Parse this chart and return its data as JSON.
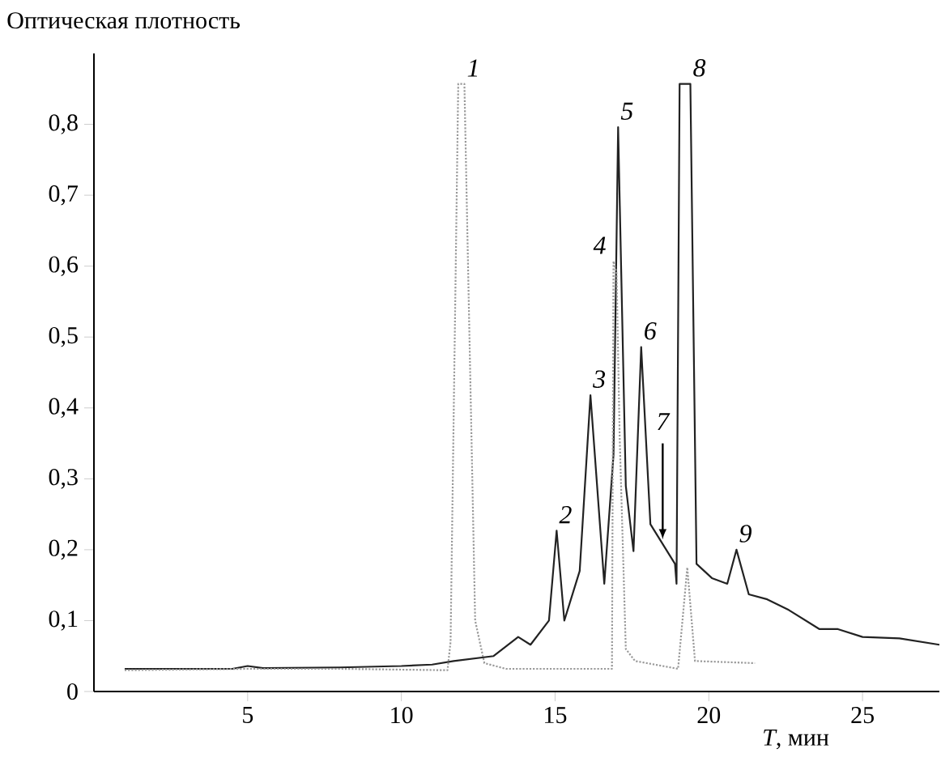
{
  "chart_data": {
    "type": "line",
    "ylabel": "Оптическая плотность",
    "xlabel": "*T*, мин",
    "xlim": [
      0,
      27.5
    ],
    "ylim": [
      0,
      0.9
    ],
    "xticks": [
      5,
      10,
      15,
      20,
      25
    ],
    "yticks": [
      0,
      {
        "value": 0.1,
        "label": "0,1"
      },
      {
        "value": 0.2,
        "label": "0,2"
      },
      {
        "value": 0.3,
        "label": "0,3"
      },
      {
        "value": 0.4,
        "label": "0,4"
      },
      {
        "value": 0.5,
        "label": "0,5"
      },
      {
        "value": 0.6,
        "label": "0,6"
      },
      {
        "value": 0.7,
        "label": "0,7"
      },
      {
        "value": 0.8,
        "label": "0,8"
      }
    ],
    "series": [
      {
        "color": "#222222",
        "line_style": "solid",
        "x": [
          1,
          4.5,
          5,
          5.5,
          8,
          10,
          11,
          11.7,
          13,
          13.8,
          14.2,
          14.8,
          15.05,
          15.3,
          15.8,
          16.15,
          16.6,
          16.9,
          17.05,
          17.3,
          17.55,
          17.8,
          18.1,
          18.9,
          18.95,
          19.05,
          19.4,
          19.6,
          20.1,
          20.6,
          20.9,
          21.3,
          21.9,
          22.6,
          23.6,
          24.2,
          25,
          26.2,
          27.5
        ],
        "values": [
          0.032,
          0.032,
          0.036,
          0.033,
          0.034,
          0.036,
          0.038,
          0.043,
          0.05,
          0.077,
          0.066,
          0.1,
          0.227,
          0.1,
          0.17,
          0.418,
          0.152,
          0.334,
          0.796,
          0.29,
          0.198,
          0.486,
          0.236,
          0.18,
          0.152,
          0.857,
          0.857,
          0.18,
          0.16,
          0.152,
          0.2,
          0.137,
          0.13,
          0.115,
          0.088,
          0.088,
          0.077,
          0.075,
          0.066
        ]
      },
      {
        "color": "#999999",
        "line_style": "dotted",
        "x": [
          1,
          5,
          8,
          11.5,
          11.6,
          11.85,
          12.05,
          12.4,
          12.7,
          13.4,
          16.85,
          16.9,
          17.0,
          17.1,
          17.3,
          17.6,
          19.0,
          19.3,
          19.55,
          21.5
        ],
        "values": [
          0.03,
          0.032,
          0.032,
          0.03,
          0.07,
          0.857,
          0.857,
          0.1,
          0.04,
          0.032,
          0.032,
          0.607,
          0.59,
          0.36,
          0.06,
          0.043,
          0.032,
          0.175,
          0.043,
          0.04
        ]
      }
    ],
    "annotations": [
      {
        "text": "1",
        "x": 12.05,
        "y": 0.857
      },
      {
        "text": "2",
        "x": 15.05,
        "y": 0.227
      },
      {
        "text": "3",
        "x": 16.15,
        "y": 0.418
      },
      {
        "text": "4",
        "x": 16.9,
        "y": 0.607
      },
      {
        "text": "5",
        "x": 17.05,
        "y": 0.796
      },
      {
        "text": "6",
        "x": 17.8,
        "y": 0.486
      },
      {
        "text": "7",
        "x": 18.5,
        "y": 0.21
      },
      {
        "text": "8",
        "x": 19.4,
        "y": 0.857
      },
      {
        "text": "9",
        "x": 20.9,
        "y": 0.2
      }
    ]
  }
}
